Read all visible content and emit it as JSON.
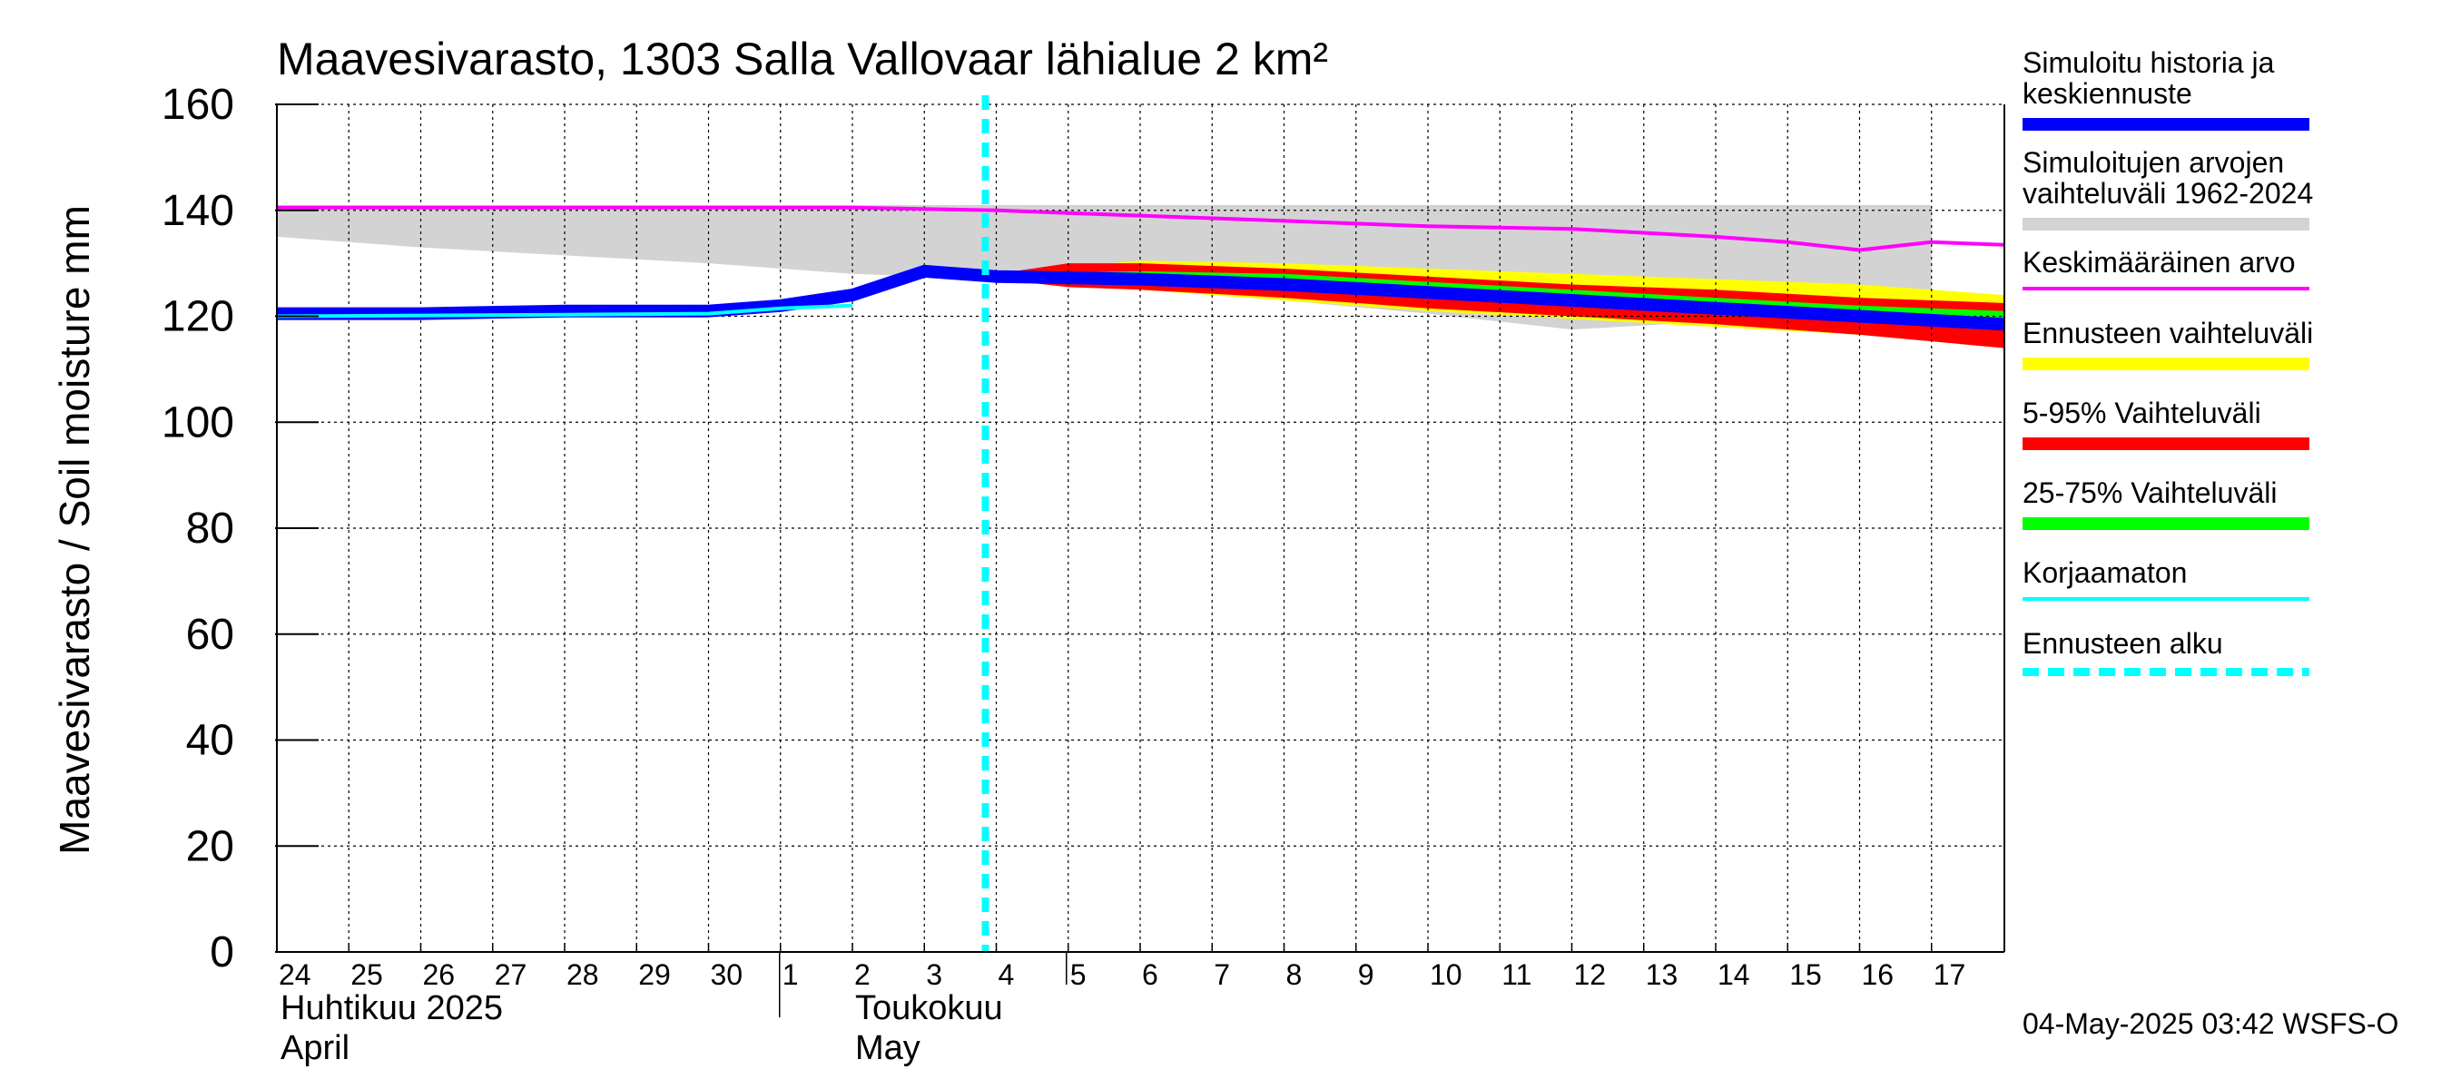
{
  "chart_data": {
    "type": "line",
    "title": "Maavesivarasto, 1303 Salla Vallovaar lähialue 2 km²",
    "ylabel": "Maavesivarasto / Soil moisture   mm",
    "ylim": [
      0,
      160
    ],
    "yticks": [
      "0",
      "20",
      "40",
      "60",
      "80",
      "100",
      "120",
      "140",
      "160"
    ],
    "x_day_labels": [
      "24",
      "25",
      "26",
      "27",
      "28",
      "29",
      "30",
      "1",
      "2",
      "3",
      "4",
      "5",
      "6",
      "7",
      "8",
      "9",
      "10",
      "11",
      "12",
      "13",
      "14",
      "15",
      "16",
      "17"
    ],
    "month_labels": [
      {
        "fi": "Huhtikuu  2025",
        "en": "April"
      },
      {
        "fi": "Toukokuu",
        "en": "May"
      }
    ],
    "forecast_start": "2025-05-04",
    "grid": true,
    "legend_position": "right",
    "colors": {
      "history": "#0000ff",
      "range_all": "#d3d3d3",
      "mean": "#ff00ff",
      "forecast_range": "#ffff00",
      "p5_95": "#ff0000",
      "p25_75": "#00ff00",
      "uncorrected": "#00ffff",
      "forecast_start": "#00ffff"
    },
    "series": [
      {
        "name": "Simuloitujen arvojen vaihteluväli 1962-2024",
        "kind": "band",
        "x": [
          "2025-04-24",
          "2025-04-26",
          "2025-04-28",
          "2025-04-30",
          "2025-05-02",
          "2025-05-04",
          "2025-05-06",
          "2025-05-08",
          "2025-05-10",
          "2025-05-12",
          "2025-05-14",
          "2025-05-16",
          "2025-05-17"
        ],
        "low": [
          135,
          133,
          131.5,
          130,
          128,
          127,
          126,
          123,
          120.5,
          117.5,
          119,
          118,
          117
        ],
        "high": [
          141,
          141,
          141,
          141,
          141,
          141,
          141,
          141,
          141,
          141,
          141,
          141,
          141
        ]
      },
      {
        "name": "Keskimääräinen arvo",
        "kind": "line",
        "x": [
          "2025-04-24",
          "2025-04-28",
          "2025-05-02",
          "2025-05-04",
          "2025-05-06",
          "2025-05-08",
          "2025-05-10",
          "2025-05-12",
          "2025-05-14",
          "2025-05-15",
          "2025-05-16",
          "2025-05-17",
          "2025-05-18"
        ],
        "y": [
          140.5,
          140.5,
          140.5,
          140,
          139,
          138,
          137,
          136.5,
          135,
          134,
          132.5,
          134,
          133.5
        ]
      },
      {
        "name": "Ennusteen vaihteluväli",
        "kind": "band",
        "x": [
          "2025-05-04",
          "2025-05-06",
          "2025-05-08",
          "2025-05-10",
          "2025-05-12",
          "2025-05-14",
          "2025-05-16",
          "2025-05-18"
        ],
        "low": [
          127,
          125,
          123,
          121,
          119.5,
          118,
          116.5,
          115
        ],
        "high": [
          128,
          130.5,
          130,
          129,
          128,
          127,
          126,
          124
        ]
      },
      {
        "name": "5-95% Vaihteluväli",
        "kind": "band",
        "x": [
          "2025-05-04",
          "2025-05-05",
          "2025-05-06",
          "2025-05-08",
          "2025-05-10",
          "2025-05-12",
          "2025-05-14",
          "2025-05-16",
          "2025-05-18"
        ],
        "low": [
          127,
          125.5,
          125,
          123.5,
          121.5,
          120,
          118.5,
          116.5,
          114
        ],
        "high": [
          128,
          130,
          130,
          129,
          127.5,
          126,
          125,
          123.5,
          122.5
        ]
      },
      {
        "name": "25-75% Vaihteluväli",
        "kind": "band",
        "x": [
          "2025-05-04",
          "2025-05-06",
          "2025-05-08",
          "2025-05-10",
          "2025-05-12",
          "2025-05-14",
          "2025-05-16",
          "2025-05-18"
        ],
        "low": [
          127,
          126,
          125,
          123.5,
          122,
          120.5,
          119.5,
          118
        ],
        "high": [
          128,
          128.5,
          128,
          126.5,
          125,
          123.5,
          122,
          121
        ]
      },
      {
        "name": "Korjaamaton",
        "kind": "line",
        "x": [
          "2025-04-24",
          "2025-04-28",
          "2025-04-30",
          "2025-05-01",
          "2025-05-02"
        ],
        "y": [
          120,
          120.3,
          120.5,
          121.5,
          122
        ]
      },
      {
        "name": "Simuloitu historia ja keskiennuste",
        "kind": "line",
        "x": [
          "2025-04-24",
          "2025-04-26",
          "2025-04-28",
          "2025-04-30",
          "2025-05-01",
          "2025-05-02",
          "2025-05-03",
          "2025-05-04",
          "2025-05-06",
          "2025-05-08",
          "2025-05-10",
          "2025-05-12",
          "2025-05-14",
          "2025-05-16",
          "2025-05-18"
        ],
        "y": [
          120.5,
          120.5,
          121,
          121,
          122,
          124,
          128.5,
          127.5,
          127,
          126,
          124.5,
          123,
          121.5,
          120,
          118.5
        ]
      }
    ]
  },
  "legend": [
    {
      "label": "Simuloitu historia ja\nkeskiennuste",
      "color": "#0000ff",
      "style": "solid",
      "width": 14
    },
    {
      "label": "Simuloitujen arvojen\nvaihteluväli 1962-2024",
      "color": "#d3d3d3",
      "style": "solid",
      "width": 14
    },
    {
      "label": "Keskimääräinen arvo",
      "color": "#ff00ff",
      "style": "solid",
      "width": 4
    },
    {
      "label": "Ennusteen vaihteluväli",
      "color": "#ffff00",
      "style": "solid",
      "width": 14
    },
    {
      "label": "5-95% Vaihteluväli",
      "color": "#ff0000",
      "style": "solid",
      "width": 14
    },
    {
      "label": "25-75% Vaihteluväli",
      "color": "#00ff00",
      "style": "solid",
      "width": 14
    },
    {
      "label": "Korjaamaton",
      "color": "#00ffff",
      "style": "solid",
      "width": 4
    },
    {
      "label": "Ennusteen alku",
      "color": "#00ffff",
      "style": "dashed",
      "width": 9
    }
  ],
  "footer": "04-May-2025 03:42 WSFS-O"
}
